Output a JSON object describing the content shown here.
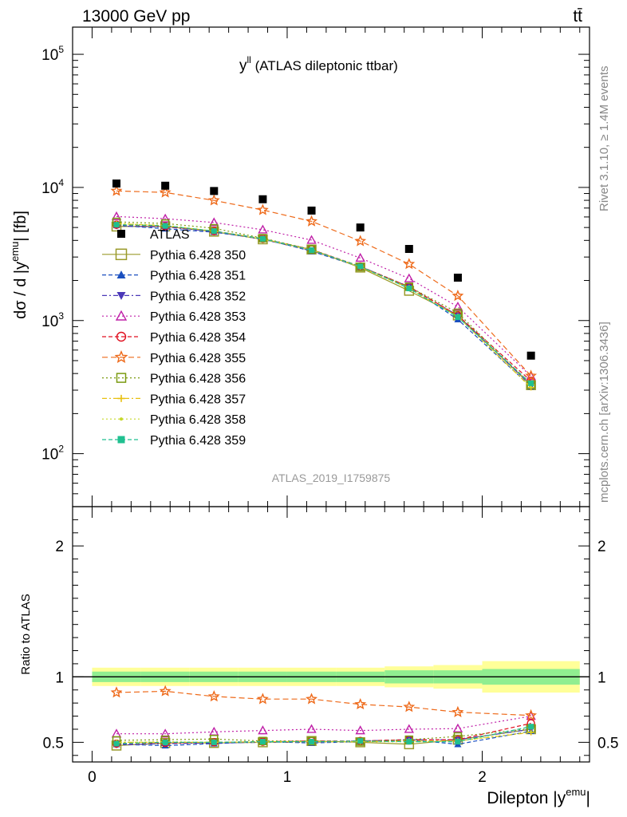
{
  "header": {
    "energy": "13000 GeV pp",
    "process": "tt̄"
  },
  "side_labels": {
    "rivet": "Rivet 3.1.10, ≥ 1.4M events",
    "mcplots": "mcplots.cern.ch [arXiv:1306.3436]"
  },
  "chart_data": {
    "type": "scatter",
    "title": "y^ll (ATLAS dileptonic ttbar)",
    "title_main": "y",
    "title_sup": "ll",
    "title_rest": " (ATLAS dileptonic ttbar)",
    "analysis_id": "ATLAS_2019_I1759875",
    "xlabel": "Dilepton |y^emu|",
    "xlabel_main": "Dilepton |y",
    "xlabel_sup": "emu",
    "xlabel_end": "|",
    "ylabel": "dσ / d |y^emu| [fb]",
    "ylabel_main": "dσ / d |y",
    "ylabel_sup": "emu",
    "ylabel_end": "| [fb]",
    "ratio_ylabel": "Ratio to ATLAS",
    "xlim": [
      -0.1,
      2.55
    ],
    "ylim": [
      40,
      160000
    ],
    "yscale": "log",
    "ratio_ylim": [
      0.35,
      2.3
    ],
    "x_ticks": [
      "0",
      "1",
      "2"
    ],
    "y_ticks": [
      {
        "base": "10",
        "exp": "2",
        "value": 100
      },
      {
        "base": "10",
        "exp": "3",
        "value": 1000
      },
      {
        "base": "10",
        "exp": "4",
        "value": 10000
      },
      {
        "base": "10",
        "exp": "5",
        "value": 100000
      }
    ],
    "ratio_ticks": [
      "0.5",
      "1",
      "2"
    ],
    "legend_position": "upper-left",
    "x": [
      0.125,
      0.375,
      0.625,
      0.875,
      1.125,
      1.375,
      1.625,
      1.875,
      2.25
    ],
    "bin_edges": [
      0,
      0.25,
      0.5,
      0.75,
      1.0,
      1.25,
      1.5,
      1.75,
      2.0,
      2.5
    ],
    "data": {
      "name": "ATLAS",
      "values": [
        10700,
        10300,
        9400,
        8150,
        6700,
        5000,
        3450,
        2100,
        545
      ],
      "band_inner": [
        0.04,
        0.04,
        0.04,
        0.04,
        0.04,
        0.04,
        0.05,
        0.05,
        0.06
      ],
      "band_outer": [
        0.07,
        0.07,
        0.07,
        0.07,
        0.07,
        0.07,
        0.08,
        0.09,
        0.12
      ]
    },
    "series": [
      {
        "name": "Pythia 6.428 350",
        "color": "#9a9a2a",
        "marker": "square-open",
        "dash": "",
        "size": 11,
        "ratio": [
          0.475,
          0.495,
          0.495,
          0.5,
          0.51,
          0.5,
          0.485,
          0.52,
          0.6
        ]
      },
      {
        "name": "Pythia 6.428 351",
        "color": "#1a4fbf",
        "marker": "triangle-up",
        "dash": "5,3",
        "size": 9,
        "ratio": [
          0.485,
          0.475,
          0.49,
          0.505,
          0.495,
          0.505,
          0.52,
          0.485,
          0.585
        ]
      },
      {
        "name": "Pythia 6.428 352",
        "color": "#4b38b8",
        "marker": "triangle-down",
        "dash": "6,3,2,3",
        "size": 9,
        "ratio": [
          0.48,
          0.49,
          0.495,
          0.5,
          0.5,
          0.51,
          0.52,
          0.52,
          0.6
        ]
      },
      {
        "name": "Pythia 6.428 353",
        "color": "#c020a8",
        "marker": "triangle-open",
        "dash": "2,3",
        "size": 10,
        "ratio": [
          0.565,
          0.565,
          0.58,
          0.59,
          0.6,
          0.59,
          0.6,
          0.605,
          0.7
        ]
      },
      {
        "name": "Pythia 6.428 354",
        "color": "#e01020",
        "marker": "circle-open",
        "dash": "5,3",
        "size": 9,
        "ratio": [
          0.49,
          0.495,
          0.5,
          0.505,
          0.51,
          0.51,
          0.52,
          0.52,
          0.645
        ]
      },
      {
        "name": "Pythia 6.428 355",
        "color": "#ee6a1a",
        "marker": "star-open",
        "dash": "7,4",
        "size": 12,
        "ratio": [
          0.88,
          0.89,
          0.85,
          0.83,
          0.83,
          0.79,
          0.77,
          0.73,
          0.705
        ]
      },
      {
        "name": "Pythia 6.428 356",
        "color": "#7a9a10",
        "marker": "square-open",
        "dash": "2,3",
        "size": 9,
        "ratio": [
          0.515,
          0.52,
          0.525,
          0.51,
          0.51,
          0.505,
          0.52,
          0.545,
          0.605
        ]
      },
      {
        "name": "Pythia 6.428 357",
        "color": "#e8c010",
        "marker": "cross",
        "dash": "6,3,2,3",
        "size": 7,
        "ratio": [
          0.5,
          0.5,
          0.5,
          0.505,
          0.505,
          0.505,
          0.51,
          0.51,
          0.575
        ]
      },
      {
        "name": "Pythia 6.428 358",
        "color": "#c6d82a",
        "marker": "dot",
        "dash": "2,3",
        "size": 5,
        "ratio": [
          0.5,
          0.505,
          0.5,
          0.5,
          0.505,
          0.505,
          0.505,
          0.51,
          0.58
        ]
      },
      {
        "name": "Pythia 6.428 359",
        "color": "#20c090",
        "marker": "square",
        "dash": "5,3",
        "size": 7,
        "ratio": [
          0.49,
          0.5,
          0.5,
          0.505,
          0.505,
          0.51,
          0.505,
          0.505,
          0.62
        ]
      }
    ]
  }
}
